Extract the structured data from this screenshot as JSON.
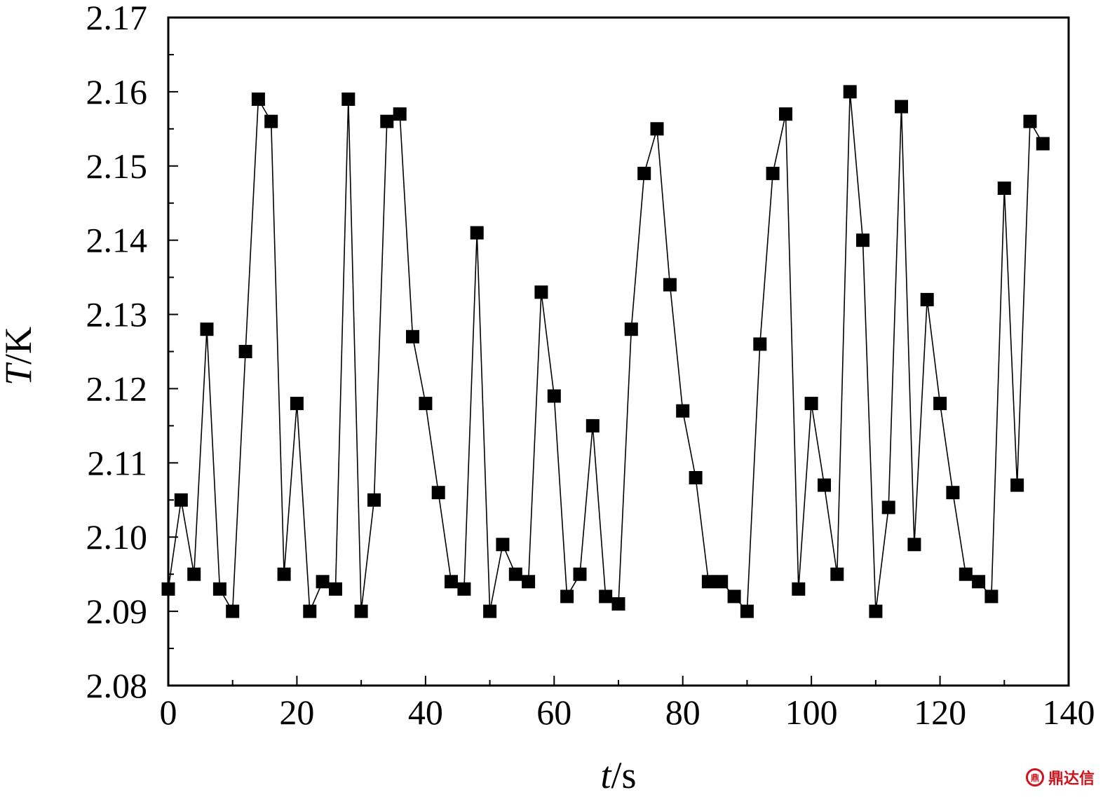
{
  "chart_data": {
    "type": "line",
    "markers": "square",
    "title": "",
    "xlabel": {
      "symbol": "t",
      "unit": "/s"
    },
    "ylabel": {
      "symbol": "T",
      "unit": "/K"
    },
    "xlim": [
      0,
      140
    ],
    "ylim": [
      2.08,
      2.17
    ],
    "xticks": [
      "0",
      "20",
      "40",
      "60",
      "80",
      "100",
      "120",
      "140"
    ],
    "yticks": [
      "2.08",
      "2.09",
      "2.10",
      "2.11",
      "2.12",
      "2.13",
      "2.14",
      "2.15",
      "2.16",
      "2.17"
    ],
    "grid": false,
    "legend": "none",
    "series": [
      {
        "x": [
          0,
          2,
          4,
          6,
          8,
          10,
          12,
          14,
          16,
          18,
          20,
          22,
          24,
          26,
          28,
          30,
          32,
          34,
          36,
          38,
          40,
          42,
          44,
          46,
          48,
          50,
          52,
          54,
          56,
          58,
          60,
          62,
          64,
          66,
          68,
          70,
          72,
          74,
          76,
          78,
          80,
          82,
          84,
          86,
          88,
          90,
          92,
          94,
          96,
          98,
          100,
          102,
          104,
          106,
          108,
          110,
          112,
          114,
          116,
          118,
          120,
          122,
          124,
          126,
          128,
          130,
          132,
          134,
          136
        ],
        "values": [
          2.093,
          2.105,
          2.095,
          2.128,
          2.093,
          2.09,
          2.125,
          2.159,
          2.156,
          2.095,
          2.118,
          2.09,
          2.094,
          2.093,
          2.159,
          2.09,
          2.105,
          2.156,
          2.157,
          2.127,
          2.118,
          2.106,
          2.094,
          2.093,
          2.141,
          2.09,
          2.099,
          2.095,
          2.094,
          2.133,
          2.119,
          2.092,
          2.095,
          2.115,
          2.092,
          2.091,
          2.128,
          2.149,
          2.155,
          2.134,
          2.117,
          2.108,
          2.094,
          2.094,
          2.092,
          2.09,
          2.126,
          2.149,
          2.157,
          2.093,
          2.118,
          2.107,
          2.095,
          2.16,
          2.14,
          2.09,
          2.104,
          2.158,
          2.099,
          2.132,
          2.118,
          2.106,
          2.095,
          2.094,
          2.092,
          2.147,
          2.107,
          2.156,
          2.153
        ]
      }
    ]
  },
  "watermark": {
    "logo_text": "鼎",
    "text": "鼎达信"
  },
  "colors": {
    "line": "#000000",
    "marker": "#000000",
    "watermark": "#d0121b"
  }
}
